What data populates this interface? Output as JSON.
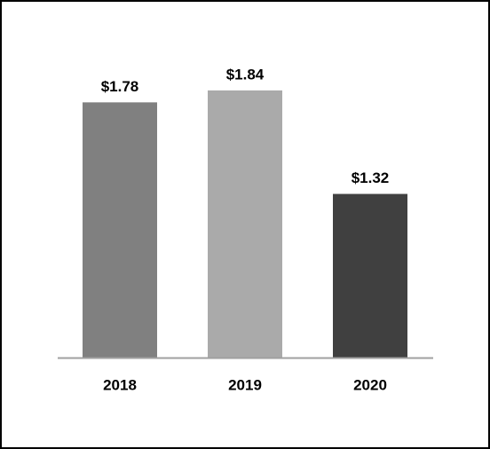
{
  "chart_data": {
    "type": "bar",
    "categories": [
      "2018",
      "2019",
      "2020"
    ],
    "values": [
      1.78,
      1.84,
      1.32
    ],
    "value_labels": [
      "$1.78",
      "$1.84",
      "$1.32"
    ],
    "colors": [
      "#808080",
      "#aaaaaa",
      "#404040"
    ],
    "ylim": [
      0.5,
      2.0
    ]
  }
}
